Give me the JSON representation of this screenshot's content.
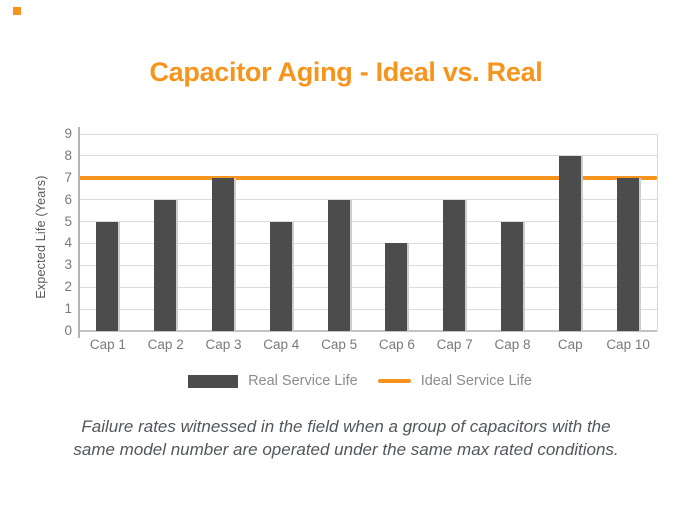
{
  "accent_color": "#F7941D",
  "bar_color": "#4C4C4C",
  "title": "Capacitor Aging - Ideal vs. Real",
  "chart_data": {
    "type": "bar",
    "title": "Capacitor Aging - Ideal vs. Real",
    "categories": [
      "Cap 1",
      "Cap 2",
      "Cap 3",
      "Cap 4",
      "Cap 5",
      "Cap 6",
      "Cap 7",
      "Cap 8",
      "Cap",
      "Cap 10"
    ],
    "series": [
      {
        "name": "Real Service Life",
        "type": "bar",
        "color": "#4C4C4C",
        "values": [
          5,
          6,
          7,
          5,
          6,
          4,
          6,
          5,
          8,
          7
        ]
      },
      {
        "name": "Ideal Service Life",
        "type": "line",
        "color": "#F7941D",
        "constant_value": 7
      }
    ],
    "xlabel": "",
    "ylabel": "Expected Life (Years)",
    "ylim": [
      0,
      9
    ],
    "y_ticks": [
      0,
      1,
      2,
      3,
      4,
      5,
      6,
      7,
      8,
      9
    ],
    "grid": true,
    "legend_position": "bottom"
  },
  "legend": {
    "real_label": "Real Service Life",
    "ideal_label": "Ideal Service Life"
  },
  "caption": {
    "line1": "Failure rates witnessed in the field when a group of capacitors with the",
    "line2": "same model number are operated under the same max rated conditions."
  }
}
